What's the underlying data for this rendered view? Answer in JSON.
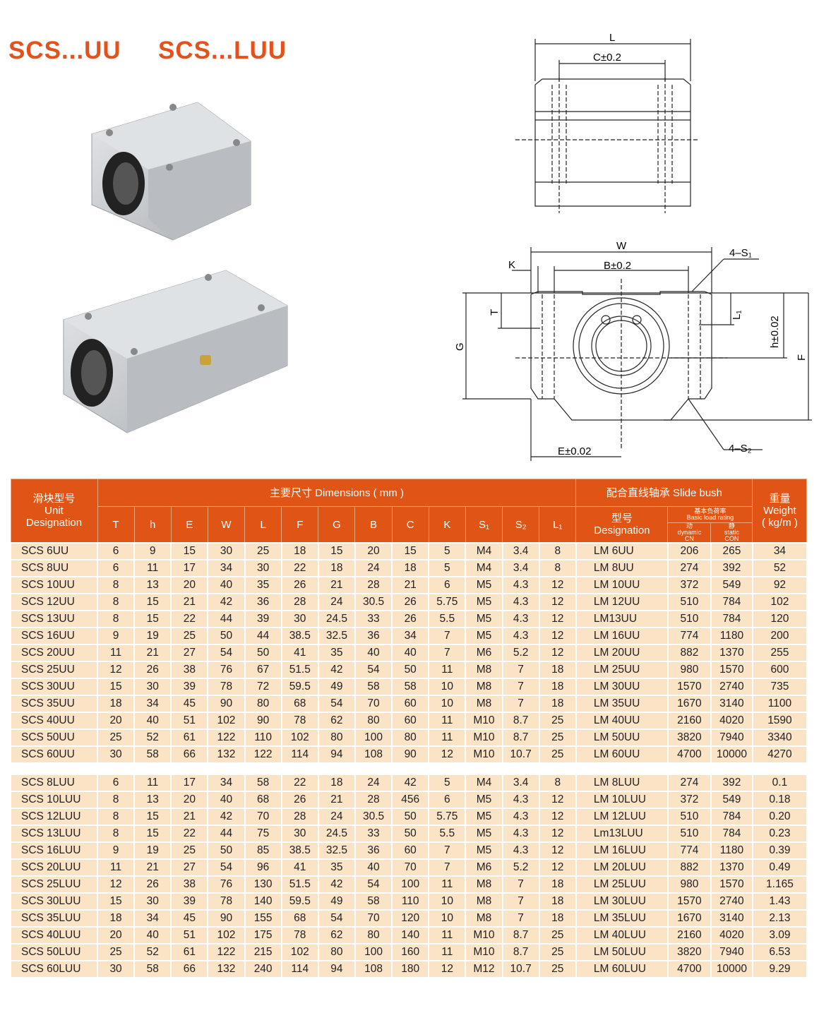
{
  "titles": [
    "SCS...UU",
    "SCS...LUU"
  ],
  "drawing_labels": {
    "top": {
      "L": "L",
      "C": "C±0.2"
    },
    "front": {
      "W": "W",
      "K": "K",
      "B": "B±0.2",
      "S1": "4–S₁",
      "T": "T",
      "G": "G",
      "L1": "L₁",
      "h": "h±0.02",
      "F": "F",
      "E": "E±0.02",
      "S2": "4–S₂"
    }
  },
  "colors": {
    "accent": "#e4521b",
    "header": "#e05516",
    "row": "#fbe3c6"
  },
  "table": {
    "header": {
      "unit_cn": "滑块型号",
      "unit_en": "Unit",
      "unit_en2": "Designation",
      "dims": "主要尺寸  Dimensions ( mm )",
      "bush": "配合直线轴承  Slide bush",
      "weight_cn": "重量",
      "weight_en": "Weight",
      "weight_unit": "( kg/m )",
      "dim_cols": [
        "T",
        "h",
        "E",
        "W",
        "L",
        "F",
        "G",
        "B",
        "C",
        "K",
        "S₁",
        "S₂",
        "L₁"
      ],
      "bush_des_cn": "型号",
      "bush_des_en": "Designation",
      "load_cn": "基本负荷率",
      "load_en": "Basic load rating",
      "dyn_cn": "动",
      "dyn_en": "dynamic",
      "dyn_unit": "CN",
      "stat_cn": "静",
      "stat_en": "static",
      "stat_unit": "CON"
    },
    "uu_rows": [
      [
        "SCS 6UU",
        "6",
        "9",
        "15",
        "30",
        "25",
        "18",
        "15",
        "20",
        "15",
        "5",
        "M4",
        "3.4",
        "8",
        "LM 6UU",
        "206",
        "265",
        "34"
      ],
      [
        "SCS 8UU",
        "6",
        "11",
        "17",
        "34",
        "30",
        "22",
        "18",
        "24",
        "18",
        "5",
        "M4",
        "3.4",
        "8",
        "LM 8UU",
        "274",
        "392",
        "52"
      ],
      [
        "SCS 10UU",
        "8",
        "13",
        "20",
        "40",
        "35",
        "26",
        "21",
        "28",
        "21",
        "6",
        "M5",
        "4.3",
        "12",
        "LM 10UU",
        "372",
        "549",
        "92"
      ],
      [
        "SCS 12UU",
        "8",
        "15",
        "21",
        "42",
        "36",
        "28",
        "24",
        "30.5",
        "26",
        "5.75",
        "M5",
        "4.3",
        "12",
        "LM 12UU",
        "510",
        "784",
        "102"
      ],
      [
        "SCS 13UU",
        "8",
        "15",
        "22",
        "44",
        "39",
        "30",
        "24.5",
        "33",
        "26",
        "5.5",
        "M5",
        "4.3",
        "12",
        "LM13UU",
        "510",
        "784",
        "120"
      ],
      [
        "SCS 16UU",
        "9",
        "19",
        "25",
        "50",
        "44",
        "38.5",
        "32.5",
        "36",
        "34",
        "7",
        "M5",
        "4.3",
        "12",
        "LM 16UU",
        "774",
        "1180",
        "200"
      ],
      [
        "SCS 20UU",
        "11",
        "21",
        "27",
        "54",
        "50",
        "41",
        "35",
        "40",
        "40",
        "7",
        "M6",
        "5.2",
        "12",
        "LM 20UU",
        "882",
        "1370",
        "255"
      ],
      [
        "SCS 25UU",
        "12",
        "26",
        "38",
        "76",
        "67",
        "51.5",
        "42",
        "54",
        "50",
        "11",
        "M8",
        "7",
        "18",
        "LM 25UU",
        "980",
        "1570",
        "600"
      ],
      [
        "SCS 30UU",
        "15",
        "30",
        "39",
        "78",
        "72",
        "59.5",
        "49",
        "58",
        "58",
        "10",
        "M8",
        "7",
        "18",
        "LM 30UU",
        "1570",
        "2740",
        "735"
      ],
      [
        "SCS 35UU",
        "18",
        "34",
        "45",
        "90",
        "80",
        "68",
        "54",
        "70",
        "60",
        "10",
        "M8",
        "7",
        "18",
        "LM 35UU",
        "1670",
        "3140",
        "1100"
      ],
      [
        "SCS 40UU",
        "20",
        "40",
        "51",
        "102",
        "90",
        "78",
        "62",
        "80",
        "60",
        "11",
        "M10",
        "8.7",
        "25",
        "LM 40UU",
        "2160",
        "4020",
        "1590"
      ],
      [
        "SCS 50UU",
        "25",
        "52",
        "61",
        "122",
        "110",
        "102",
        "80",
        "100",
        "80",
        "11",
        "M10",
        "8.7",
        "25",
        "LM 50UU",
        "3820",
        "7940",
        "3340"
      ],
      [
        "SCS 60UU",
        "30",
        "58",
        "66",
        "132",
        "122",
        "114",
        "94",
        "108",
        "90",
        "12",
        "M10",
        "10.7",
        "25",
        "LM 60UU",
        "4700",
        "10000",
        "4270"
      ]
    ],
    "luu_rows": [
      [
        "SCS 8LUU",
        "6",
        "11",
        "17",
        "34",
        "58",
        "22",
        "18",
        "24",
        "42",
        "5",
        "M4",
        "3.4",
        "8",
        "LM 8LUU",
        "274",
        "392",
        "0.1"
      ],
      [
        "SCS 10LUU",
        "8",
        "13",
        "20",
        "40",
        "68",
        "26",
        "21",
        "28",
        "456",
        "6",
        "M5",
        "4.3",
        "12",
        "LM 10LUU",
        "372",
        "549",
        "0.18"
      ],
      [
        "SCS 12LUU",
        "8",
        "15",
        "21",
        "42",
        "70",
        "28",
        "24",
        "30.5",
        "50",
        "5.75",
        "M5",
        "4.3",
        "12",
        "LM 12LUU",
        "510",
        "784",
        "0.20"
      ],
      [
        "SCS 13LUU",
        "8",
        "15",
        "22",
        "44",
        "75",
        "30",
        "24.5",
        "33",
        "50",
        "5.5",
        "M5",
        "4.3",
        "12",
        "Lm13LUU",
        "510",
        "784",
        "0.23"
      ],
      [
        "SCS 16LUU",
        "9",
        "19",
        "25",
        "50",
        "85",
        "38.5",
        "32.5",
        "36",
        "60",
        "7",
        "M5",
        "4.3",
        "12",
        "LM 16LUU",
        "774",
        "1180",
        "0.39"
      ],
      [
        "SCS 20LUU",
        "11",
        "21",
        "27",
        "54",
        "96",
        "41",
        "35",
        "40",
        "70",
        "7",
        "M6",
        "5.2",
        "12",
        "LM 20LUU",
        "882",
        "1370",
        "0.49"
      ],
      [
        "SCS 25LUU",
        "12",
        "26",
        "38",
        "76",
        "130",
        "51.5",
        "42",
        "54",
        "100",
        "11",
        "M8",
        "7",
        "18",
        "LM 25LUU",
        "980",
        "1570",
        "1.165"
      ],
      [
        "SCS 30LUU",
        "15",
        "30",
        "39",
        "78",
        "140",
        "59.5",
        "49",
        "58",
        "110",
        "10",
        "M8",
        "7",
        "18",
        "LM 30LUU",
        "1570",
        "2740",
        "1.43"
      ],
      [
        "SCS 35LUU",
        "18",
        "34",
        "45",
        "90",
        "155",
        "68",
        "54",
        "70",
        "120",
        "10",
        "M8",
        "7",
        "18",
        "LM 35LUU",
        "1670",
        "3140",
        "2.13"
      ],
      [
        "SCS 40LUU",
        "20",
        "40",
        "51",
        "102",
        "175",
        "78",
        "62",
        "80",
        "140",
        "11",
        "M10",
        "8.7",
        "25",
        "LM 40LUU",
        "2160",
        "4020",
        "3.09"
      ],
      [
        "SCS 50LUU",
        "25",
        "52",
        "61",
        "122",
        "215",
        "102",
        "80",
        "100",
        "160",
        "11",
        "M10",
        "8.7",
        "25",
        "LM 50LUU",
        "3820",
        "7940",
        "6.53"
      ],
      [
        "SCS 60LUU",
        "30",
        "58",
        "66",
        "132",
        "240",
        "114",
        "94",
        "108",
        "180",
        "12",
        "M12",
        "10.7",
        "25",
        "LM 60LUU",
        "4700",
        "10000",
        "9.29"
      ]
    ]
  }
}
